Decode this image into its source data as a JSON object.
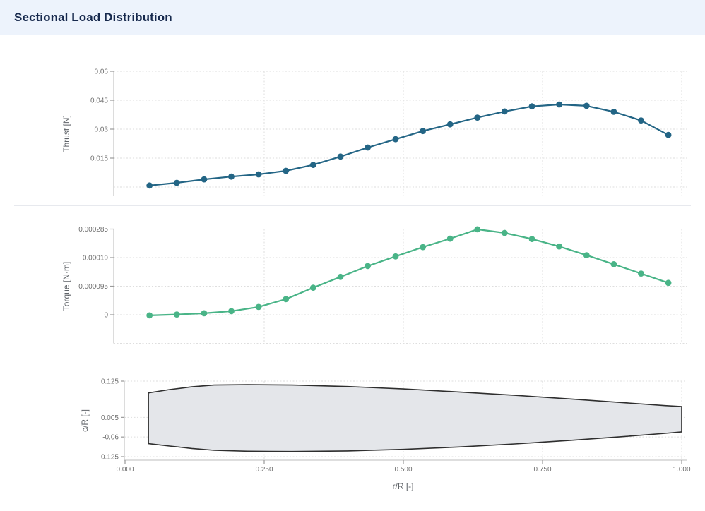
{
  "header": {
    "title": "Sectional Load Distribution"
  },
  "chart_data": [
    {
      "type": "line",
      "name": "thrust-distribution",
      "ylabel": "Thrust [N]",
      "xlabel": "r/R [-]",
      "color": "#236585",
      "x": [
        0.044,
        0.093,
        0.142,
        0.191,
        0.24,
        0.289,
        0.338,
        0.387,
        0.436,
        0.486,
        0.535,
        0.584,
        0.633,
        0.682,
        0.731,
        0.78,
        0.829,
        0.878,
        0.927,
        0.976
      ],
      "y": [
        0.0008,
        0.0022,
        0.004,
        0.0054,
        0.0066,
        0.0084,
        0.0115,
        0.0158,
        0.0205,
        0.0248,
        0.029,
        0.0325,
        0.036,
        0.0392,
        0.0418,
        0.0428,
        0.0421,
        0.039,
        0.0345,
        0.027
      ],
      "yticks": {
        "labels": [
          "0.06",
          "0.045",
          "0.03",
          "0.015"
        ],
        "values": [
          0.06,
          0.045,
          0.03,
          0.015
        ]
      },
      "grid_extra": [
        0
      ],
      "xgrid_values": [
        0.25,
        0.5,
        0.75,
        1.0
      ],
      "ylim": [
        -0.005,
        0.0615
      ],
      "xlim": [
        0,
        1.0
      ],
      "grid": true,
      "legend": "none"
    },
    {
      "type": "line",
      "name": "torque-distribution",
      "ylabel": "Torque [N·m]",
      "xlabel": "r/R [-]",
      "color": "#49b487",
      "x": [
        0.044,
        0.093,
        0.142,
        0.191,
        0.24,
        0.289,
        0.338,
        0.387,
        0.436,
        0.486,
        0.535,
        0.584,
        0.633,
        0.682,
        0.731,
        0.78,
        0.829,
        0.878,
        0.927,
        0.976
      ],
      "y": [
        -2e-06,
        1e-06,
        5e-06,
        1.2e-05,
        2.6e-05,
        5.2e-05,
        9e-05,
        0.000126,
        0.000162,
        0.000194,
        0.000225,
        0.000253,
        0.000284,
        0.000272,
        0.000252,
        0.000227,
        0.000198,
        0.000168,
        0.000137,
        0.000106
      ],
      "yticks": {
        "labels": [
          "0.000285",
          "0.00019",
          "0.000095",
          "0"
        ],
        "values": [
          0.000285,
          0.00019,
          9.5e-05,
          0
        ]
      },
      "grid_extra": [
        -9.5e-05
      ],
      "xgrid_values": [
        0.25,
        0.5,
        0.75,
        1.0
      ],
      "ylim": [
        -9.5e-05,
        0.000295
      ],
      "xlim": [
        0,
        1.0
      ],
      "grid": true,
      "legend": "none"
    },
    {
      "type": "area",
      "name": "blade-planform",
      "ylabel": "c/R [-]",
      "xlabel": "r/R [-]",
      "fill": "#e4e6ea",
      "stroke": "#2e2e2e",
      "upper": [
        [
          0.042,
          0.086
        ],
        [
          0.08,
          0.097
        ],
        [
          0.12,
          0.106
        ],
        [
          0.16,
          0.112
        ],
        [
          0.22,
          0.113
        ],
        [
          0.3,
          0.112
        ],
        [
          0.4,
          0.107
        ],
        [
          0.5,
          0.099
        ],
        [
          0.6,
          0.089
        ],
        [
          0.7,
          0.078
        ],
        [
          0.8,
          0.066
        ],
        [
          0.9,
          0.053
        ],
        [
          0.97,
          0.044
        ],
        [
          1.0,
          0.041
        ]
      ],
      "lower": [
        [
          1.0,
          -0.043
        ],
        [
          0.97,
          -0.048
        ],
        [
          0.9,
          -0.058
        ],
        [
          0.8,
          -0.071
        ],
        [
          0.7,
          -0.083
        ],
        [
          0.6,
          -0.093
        ],
        [
          0.5,
          -0.101
        ],
        [
          0.4,
          -0.106
        ],
        [
          0.3,
          -0.108
        ],
        [
          0.22,
          -0.107
        ],
        [
          0.16,
          -0.104
        ],
        [
          0.12,
          -0.098
        ],
        [
          0.08,
          -0.09
        ],
        [
          0.042,
          -0.082
        ]
      ],
      "yticks": {
        "labels": [
          "0.125",
          "0.005",
          "-0.06",
          "-0.125"
        ],
        "values": [
          0.125,
          0.005,
          -0.06,
          -0.125
        ]
      },
      "xticks": {
        "labels": [
          "0.000",
          "0.250",
          "0.500",
          "0.750",
          "1.000"
        ],
        "values": [
          0,
          0.25,
          0.5,
          0.75,
          1.0
        ]
      },
      "xgrid_values": [
        0.25,
        0.5,
        0.75,
        1.0
      ],
      "ylim": [
        -0.125,
        0.125
      ],
      "xlim": [
        0,
        1.0
      ],
      "grid": true,
      "legend": "none"
    }
  ],
  "style": {
    "thrust_color": "#236585",
    "torque_color": "#49b487",
    "blade_fill": "#e4e6ea",
    "blade_stroke": "#2e2e2e",
    "header_bg": "#edf3fc",
    "title_color": "#17294d",
    "grid_color": "#dedede",
    "axis_color": "#c9c9c9",
    "tick_text_color": "#6f6f6f"
  }
}
